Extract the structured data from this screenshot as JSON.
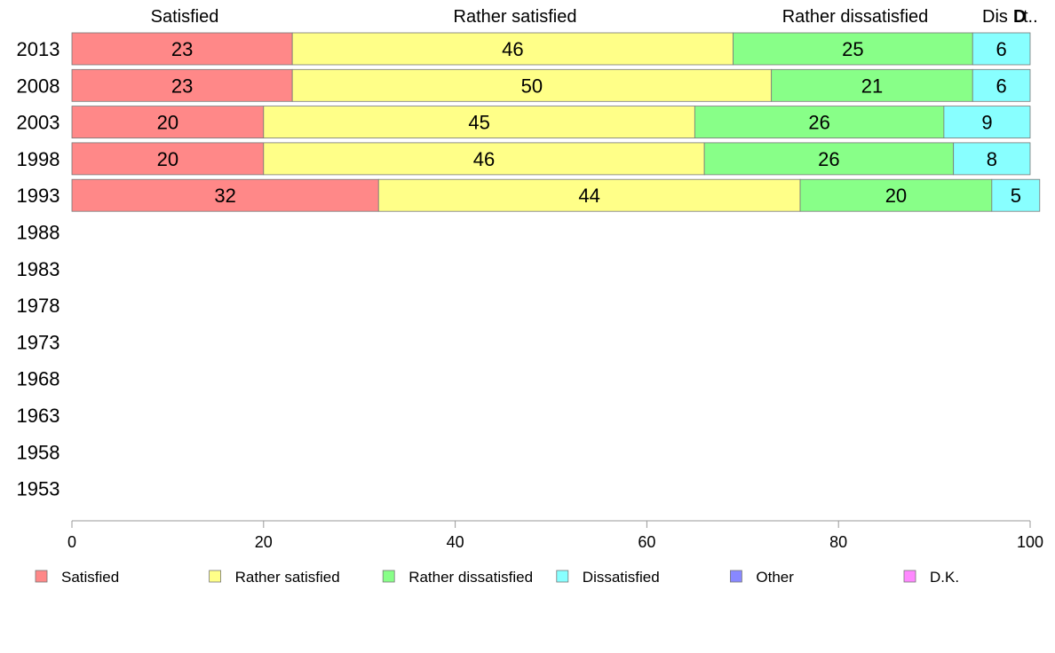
{
  "chart_data": {
    "type": "bar",
    "orientation": "horizontal",
    "stacked": true,
    "categories": [
      "2013",
      "2008",
      "2003",
      "1998",
      "1993",
      "1988",
      "1983",
      "1978",
      "1973",
      "1968",
      "1963",
      "1958",
      "1953"
    ],
    "series": [
      {
        "name": "Satisfied",
        "color": "#ff8888",
        "values": [
          23,
          23,
          20,
          20,
          32,
          null,
          null,
          null,
          null,
          null,
          null,
          null,
          null
        ]
      },
      {
        "name": "Rather satisfied",
        "color": "#ffff88",
        "values": [
          46,
          50,
          45,
          46,
          44,
          null,
          null,
          null,
          null,
          null,
          null,
          null,
          null
        ]
      },
      {
        "name": "Rather dissatisfied",
        "color": "#88ff88",
        "values": [
          25,
          21,
          26,
          26,
          20,
          null,
          null,
          null,
          null,
          null,
          null,
          null,
          null
        ]
      },
      {
        "name": "Dissatisfied",
        "color": "#88ffff",
        "values": [
          6,
          6,
          9,
          8,
          5,
          null,
          null,
          null,
          null,
          null,
          null,
          null,
          null
        ]
      },
      {
        "name": "Other",
        "color": "#8888ff",
        "values": [
          0,
          0,
          0,
          0,
          0,
          null,
          null,
          null,
          null,
          null,
          null,
          null,
          null
        ]
      },
      {
        "name": "D.K.",
        "color": "#ff88ff",
        "values": [
          0,
          0,
          0,
          0,
          0,
          null,
          null,
          null,
          null,
          null,
          null,
          null,
          null
        ]
      }
    ],
    "top_labels": [
      "Satisfied",
      "Rather satisfied",
      "Rather dissatisfied",
      "Dis",
      "D",
      "t.."
    ],
    "xlim": [
      0,
      100
    ],
    "x_ticks": [
      "0",
      "20",
      "40",
      "60",
      "80",
      "100"
    ],
    "title": "",
    "xlabel": "",
    "ylabel": "",
    "grid": false,
    "legend_position": "bottom"
  }
}
